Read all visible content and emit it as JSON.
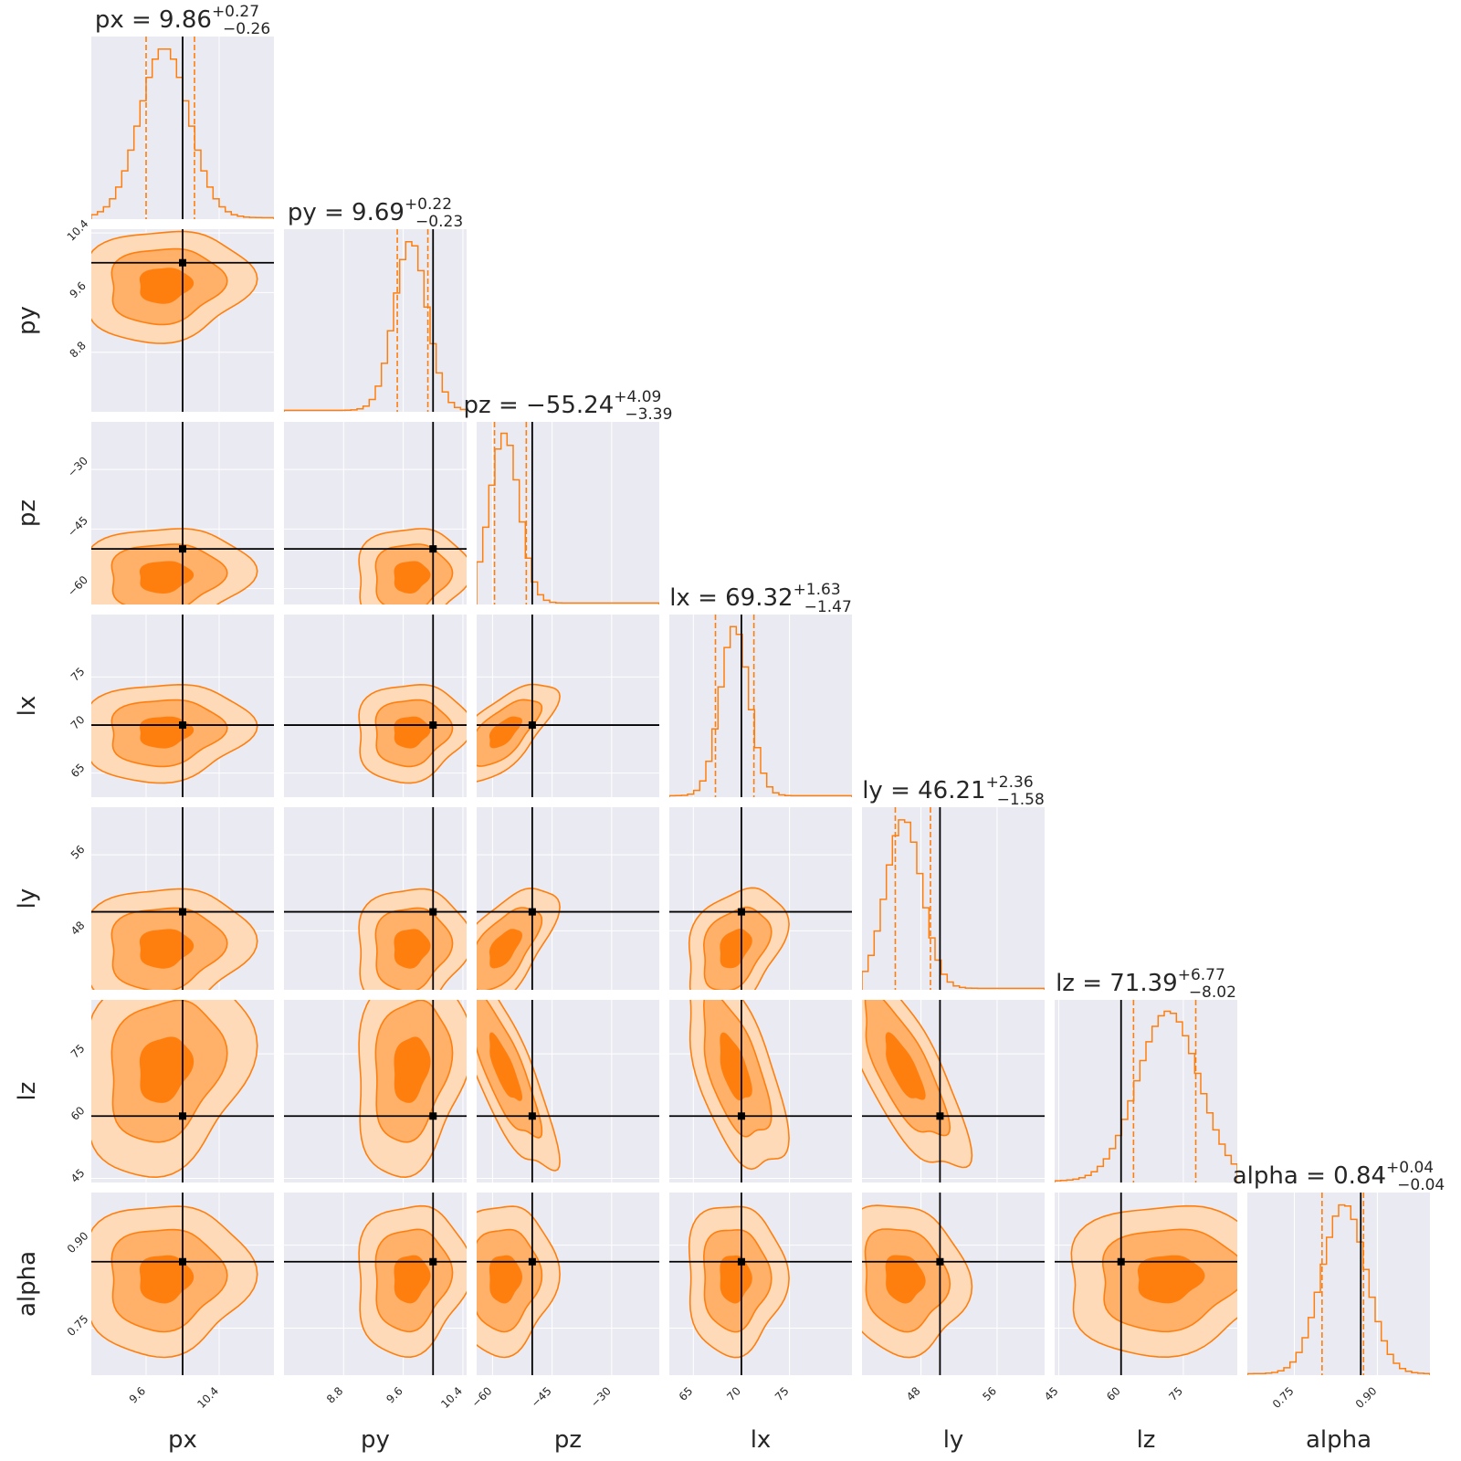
{
  "colors": {
    "panel_bg": "#eaeaf2",
    "grid": "#ffffff",
    "accent": "#ff7f0e",
    "fill_outer": "#ffdab9",
    "fill_mid": "#ffb069",
    "fill_inner": "#ff7f0e",
    "truth": "#000000",
    "text": "#262626"
  },
  "chart_data": {
    "type": "corner",
    "levels": [
      "1-sigma",
      "2-sigma",
      "3-sigma"
    ],
    "parameters": [
      {
        "name": "px",
        "label": "px",
        "range": [
          9.0,
          11.0
        ],
        "ticks": [
          9.6,
          10.4
        ],
        "tick_labels": [
          "9.6",
          "10.4"
        ],
        "truth": 10.0,
        "title": {
          "prefix": "px = ",
          "median": "9.86",
          "plus": "+0.27",
          "minus": "−0.26"
        },
        "q16": 9.6,
        "q84": 10.13,
        "mode": 9.8,
        "sigma_plot": 0.27
      },
      {
        "name": "py",
        "label": "py",
        "range": [
          8.0,
          10.45
        ],
        "ticks": [
          8.8,
          9.6,
          10.4
        ],
        "tick_labels": [
          "8.8",
          "9.6",
          "10.4"
        ],
        "truth": 10.0,
        "title": {
          "prefix": "py = ",
          "median": "9.69",
          "plus": "+0.22",
          "minus": "−0.23"
        },
        "q16": 9.52,
        "q84": 9.93,
        "mode": 9.7,
        "sigma_plot": 0.22
      },
      {
        "name": "pz",
        "label": "pz",
        "range": [
          -64.0,
          -18.0
        ],
        "ticks": [
          -60,
          -45,
          -30
        ],
        "tick_labels": [
          "−60",
          "−45",
          "−30"
        ],
        "truth": -50.0,
        "title": {
          "prefix": "pz = ",
          "median": "−55.24",
          "plus": "+4.09",
          "minus": "−3.39"
        },
        "q16": -59.5,
        "q84": -51.5,
        "mode": -57.0,
        "sigma_plot": 3.7
      },
      {
        "name": "lx",
        "label": "lx",
        "range": [
          62.5,
          81.5
        ],
        "ticks": [
          65,
          70,
          75
        ],
        "tick_labels": [
          "65",
          "70",
          "75"
        ],
        "truth": 70.0,
        "title": {
          "prefix": "lx = ",
          "median": "69.32",
          "plus": "+1.63",
          "minus": "−1.47"
        },
        "q16": 67.3,
        "q84": 71.3,
        "mode": 69.3,
        "sigma_plot": 1.5
      },
      {
        "name": "ly",
        "label": "ly",
        "range": [
          41.8,
          61.0
        ],
        "ticks": [
          48,
          56
        ],
        "tick_labels": [
          "48",
          "56"
        ],
        "truth": 50.0,
        "title": {
          "prefix": "ly = ",
          "median": "46.21",
          "plus": "+2.36",
          "minus": "−1.58"
        },
        "q16": 45.3,
        "q84": 49.0,
        "mode": 46.2,
        "sigma_plot": 1.9
      },
      {
        "name": "lz",
        "label": "lz",
        "range": [
          44.0,
          88.0
        ],
        "ticks": [
          45,
          60,
          75
        ],
        "tick_labels": [
          "45",
          "60",
          "75"
        ],
        "truth": 60.0,
        "title": {
          "prefix": "lz = ",
          "median": "71.39",
          "plus": "+6.77",
          "minus": "−8.02"
        },
        "q16": 63.0,
        "q84": 78.0,
        "mode": 71.4,
        "sigma_plot": 7.4
      },
      {
        "name": "alpha",
        "label": "alpha",
        "range": [
          0.665,
          0.995
        ],
        "ticks": [
          0.75,
          0.9
        ],
        "tick_labels": [
          "0.75",
          "0.90"
        ],
        "truth": 0.87,
        "title": {
          "prefix": "alpha = ",
          "median": "0.84",
          "plus": "+0.04",
          "minus": "−0.04"
        },
        "q16": 0.8,
        "q84": 0.875,
        "mode": 0.84,
        "sigma_plot": 0.04
      }
    ],
    "correlations": [
      [
        0,
        0,
        0,
        0,
        0,
        0,
        0
      ],
      [
        0.1,
        0,
        0,
        0,
        0,
        0,
        0
      ],
      [
        0.1,
        0.1,
        0,
        0,
        0,
        0,
        0
      ],
      [
        0.1,
        0.1,
        0.65,
        0,
        0,
        0,
        0
      ],
      [
        0.1,
        0.1,
        0.6,
        0.35,
        0,
        0,
        0
      ],
      [
        0.2,
        0.2,
        -0.8,
        -0.6,
        -0.75,
        0,
        0
      ],
      [
        0.05,
        0.1,
        0.05,
        0.0,
        -0.1,
        0.1,
        0
      ]
    ]
  }
}
